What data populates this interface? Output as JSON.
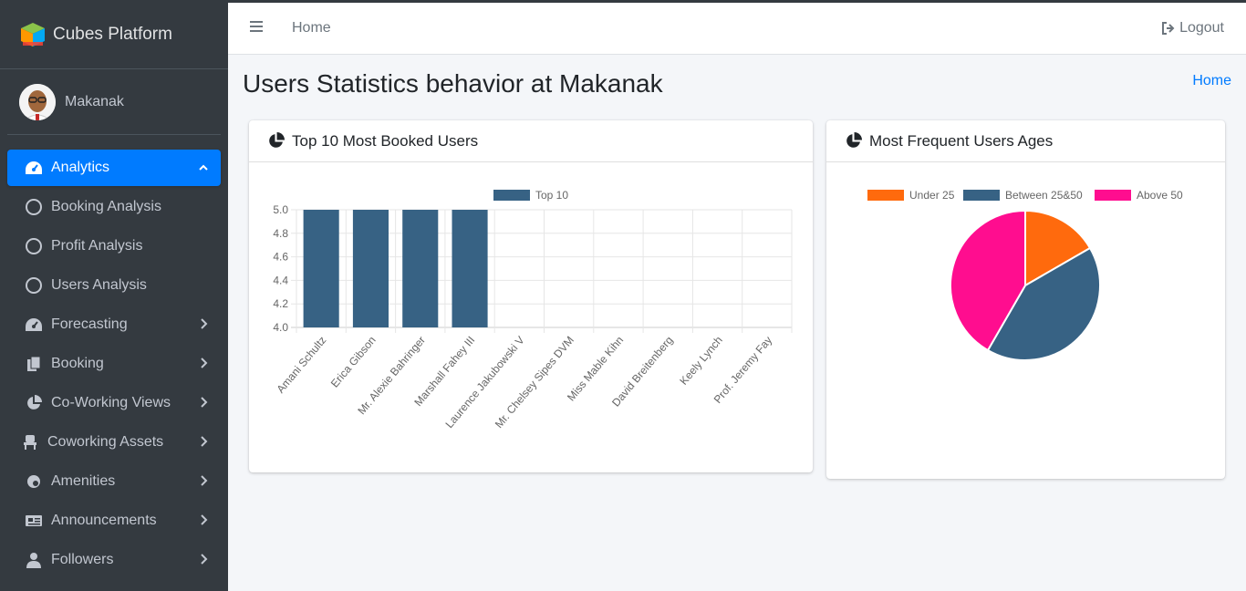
{
  "brand": {
    "title": "Cubes Platform"
  },
  "user": {
    "name": "Makanak"
  },
  "sidebar": {
    "items": [
      {
        "label": "Analytics",
        "icon": "tachometer-icon",
        "active": true
      },
      {
        "label": "Booking Analysis",
        "icon": "circle-icon",
        "sub": true
      },
      {
        "label": "Profit Analysis",
        "icon": "circle-icon",
        "sub": true
      },
      {
        "label": "Users Analysis",
        "icon": "circle-icon",
        "sub": true
      },
      {
        "label": "Forecasting",
        "icon": "tachometer-icon"
      },
      {
        "label": "Booking",
        "icon": "copy-icon"
      },
      {
        "label": "Co-Working Views",
        "icon": "pie-chart-icon"
      },
      {
        "label": "Coworking Assets",
        "icon": "chair-icon"
      },
      {
        "label": "Amenities",
        "icon": "gear-icon"
      },
      {
        "label": "Announcements",
        "icon": "newspaper-icon"
      },
      {
        "label": "Followers",
        "icon": "user-icon"
      }
    ]
  },
  "header": {
    "home_label": "Home",
    "logout_label": "Logout"
  },
  "page": {
    "title": "Users Statistics behavior at Makanak",
    "breadcrumb": "Home"
  },
  "cards": {
    "booked": {
      "title": "Top 10 Most Booked Users"
    },
    "ages": {
      "title": "Most Frequent Users Ages"
    }
  },
  "colors": {
    "accent": "#007bff",
    "bar": "#376284",
    "under25": "#ff6a0d",
    "between": "#376284",
    "above50": "#ff0d8f"
  },
  "chart_data": [
    {
      "type": "bar",
      "categories": [
        "Amani Schultz",
        "Erica Gibson",
        "Mr. Alexie Bahringer",
        "Marshall Fahey III",
        "Laurence Jakubowski V",
        "Mr. Chelsey Sipes DVM",
        "Miss Mable Kihn",
        "David Breitenberg",
        "Keely Lynch",
        "Prof. Jeremy Fay"
      ],
      "series": [
        {
          "name": "Top 10",
          "values": [
            5,
            5,
            5,
            5,
            4,
            4,
            4,
            4,
            4,
            4
          ]
        }
      ],
      "ylim": [
        4.0,
        5.0
      ],
      "yticks": [
        "5.0",
        "4.8",
        "4.6",
        "4.4",
        "4.2",
        "4.0"
      ],
      "legend": "top"
    },
    {
      "type": "pie",
      "labels": [
        "Under 25",
        "Between 25&50",
        "Above 50"
      ],
      "values": [
        1,
        2.5,
        2.5
      ],
      "legend": "top"
    }
  ]
}
